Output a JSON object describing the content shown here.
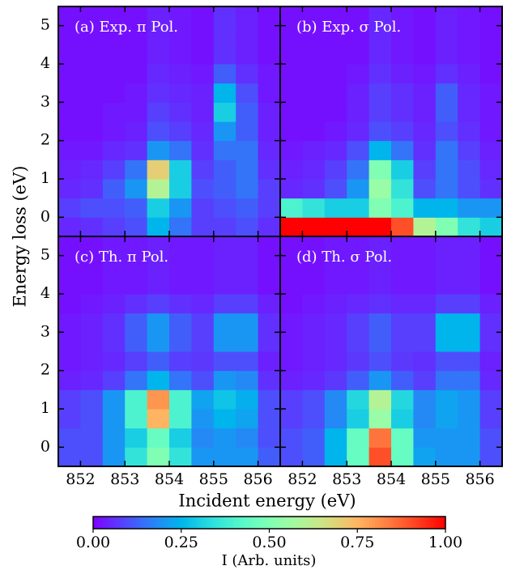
{
  "chart_data": [
    {
      "type": "heatmap",
      "title": "(a) Exp. π Pol.",
      "colormap": "rainbow",
      "xlim": [
        851.5,
        856.5
      ],
      "ylim": [
        -0.5,
        5.5
      ],
      "xticks": [
        852,
        853,
        854,
        855,
        856
      ],
      "yticks": [
        0,
        1,
        2,
        3,
        4,
        5
      ],
      "xbins": [
        851.5,
        852,
        852.5,
        853,
        853.5,
        854,
        854.5,
        855,
        855.5,
        856,
        856.5
      ],
      "ybins": [
        -0.5,
        0,
        0.5,
        1,
        1.5,
        2,
        2.5,
        3,
        3.5,
        4,
        4.5,
        5,
        5.5
      ],
      "values": [
        [
          0.05,
          0.06,
          0.08,
          0.1,
          0.25,
          0.15,
          0.08,
          0.08,
          0.1,
          0.06
        ],
        [
          0.08,
          0.1,
          0.1,
          0.12,
          0.3,
          0.2,
          0.08,
          0.1,
          0.12,
          0.08
        ],
        [
          0.05,
          0.06,
          0.12,
          0.2,
          0.6,
          0.3,
          0.1,
          0.12,
          0.15,
          0.08
        ],
        [
          0.04,
          0.05,
          0.08,
          0.15,
          0.7,
          0.3,
          0.08,
          0.12,
          0.15,
          0.06
        ],
        [
          0.03,
          0.03,
          0.05,
          0.06,
          0.2,
          0.15,
          0.06,
          0.15,
          0.15,
          0.05
        ],
        [
          0.02,
          0.02,
          0.03,
          0.04,
          0.1,
          0.08,
          0.05,
          0.2,
          0.12,
          0.04
        ],
        [
          0.02,
          0.02,
          0.03,
          0.03,
          0.08,
          0.06,
          0.04,
          0.3,
          0.12,
          0.04
        ],
        [
          0.02,
          0.02,
          0.02,
          0.03,
          0.06,
          0.05,
          0.04,
          0.25,
          0.1,
          0.03
        ],
        [
          0.02,
          0.02,
          0.02,
          0.02,
          0.05,
          0.04,
          0.03,
          0.12,
          0.06,
          0.03
        ],
        [
          0.02,
          0.02,
          0.02,
          0.02,
          0.04,
          0.03,
          0.02,
          0.06,
          0.04,
          0.02
        ],
        [
          0.02,
          0.02,
          0.02,
          0.02,
          0.04,
          0.03,
          0.02,
          0.06,
          0.04,
          0.02
        ],
        [
          0.02,
          0.02,
          0.02,
          0.02,
          0.04,
          0.03,
          0.02,
          0.06,
          0.04,
          0.02
        ]
      ]
    },
    {
      "type": "heatmap",
      "title": "(b) Exp. σ Pol.",
      "colormap": "rainbow",
      "xlim": [
        851.5,
        856.5
      ],
      "ylim": [
        -0.5,
        5.5
      ],
      "xticks": [
        852,
        853,
        854,
        855,
        856
      ],
      "yticks": [
        0,
        1,
        2,
        3,
        4,
        5
      ],
      "xbins": [
        851.5,
        852,
        852.5,
        853,
        853.5,
        854,
        854.5,
        855,
        855.5,
        856,
        856.5
      ],
      "ybins": [
        -0.5,
        0,
        0.5,
        1,
        1.5,
        2,
        2.5,
        3,
        3.5,
        4,
        4.5,
        5,
        5.5
      ],
      "values": [
        [
          1,
          1,
          1,
          1,
          1,
          0.9,
          0.6,
          0.5,
          0.35,
          0.3
        ],
        [
          0.4,
          0.35,
          0.3,
          0.3,
          0.5,
          0.4,
          0.25,
          0.25,
          0.2,
          0.2
        ],
        [
          0.05,
          0.06,
          0.1,
          0.2,
          0.55,
          0.35,
          0.1,
          0.15,
          0.1,
          0.06
        ],
        [
          0.04,
          0.05,
          0.08,
          0.15,
          0.5,
          0.3,
          0.08,
          0.15,
          0.1,
          0.05
        ],
        [
          0.03,
          0.04,
          0.05,
          0.1,
          0.25,
          0.15,
          0.06,
          0.15,
          0.08,
          0.04
        ],
        [
          0.02,
          0.02,
          0.03,
          0.05,
          0.1,
          0.08,
          0.05,
          0.1,
          0.06,
          0.03
        ],
        [
          0.02,
          0.02,
          0.02,
          0.04,
          0.08,
          0.06,
          0.04,
          0.12,
          0.05,
          0.03
        ],
        [
          0.02,
          0.02,
          0.02,
          0.04,
          0.08,
          0.06,
          0.04,
          0.12,
          0.05,
          0.03
        ],
        [
          0.02,
          0.02,
          0.02,
          0.03,
          0.06,
          0.04,
          0.03,
          0.06,
          0.04,
          0.02
        ],
        [
          0.02,
          0.02,
          0.02,
          0.02,
          0.05,
          0.03,
          0.02,
          0.04,
          0.03,
          0.02
        ],
        [
          0.02,
          0.02,
          0.02,
          0.02,
          0.05,
          0.03,
          0.02,
          0.04,
          0.03,
          0.02
        ],
        [
          0.02,
          0.02,
          0.02,
          0.02,
          0.05,
          0.03,
          0.02,
          0.04,
          0.03,
          0.02
        ]
      ]
    },
    {
      "type": "heatmap",
      "title": "(c) Th. π Pol.",
      "colormap": "rainbow",
      "xlim": [
        851.5,
        856.5
      ],
      "ylim": [
        -0.5,
        5.5
      ],
      "xticks": [
        852,
        853,
        854,
        855,
        856
      ],
      "yticks": [
        0,
        1,
        2,
        3,
        4,
        5
      ],
      "xbins": [
        851.5,
        852,
        852.5,
        853,
        853.5,
        854,
        854.5,
        855,
        855.5,
        856,
        856.5
      ],
      "ybins": [
        -0.5,
        0,
        0.5,
        1,
        1.5,
        2,
        2.5,
        3,
        3.5,
        4,
        4.5,
        5,
        5.5
      ],
      "values": [
        [
          0.1,
          0.1,
          0.2,
          0.35,
          0.5,
          0.35,
          0.2,
          0.2,
          0.2,
          0.12
        ],
        [
          0.1,
          0.1,
          0.2,
          0.3,
          0.45,
          0.3,
          0.18,
          0.2,
          0.18,
          0.1
        ],
        [
          0.08,
          0.1,
          0.2,
          0.4,
          0.75,
          0.4,
          0.2,
          0.25,
          0.22,
          0.1
        ],
        [
          0.08,
          0.1,
          0.2,
          0.4,
          0.8,
          0.4,
          0.22,
          0.28,
          0.24,
          0.1
        ],
        [
          0.04,
          0.05,
          0.08,
          0.15,
          0.25,
          0.15,
          0.1,
          0.2,
          0.18,
          0.06
        ],
        [
          0.03,
          0.04,
          0.05,
          0.08,
          0.12,
          0.08,
          0.07,
          0.1,
          0.1,
          0.04
        ],
        [
          0.03,
          0.04,
          0.06,
          0.12,
          0.2,
          0.12,
          0.08,
          0.2,
          0.2,
          0.06
        ],
        [
          0.03,
          0.04,
          0.06,
          0.12,
          0.2,
          0.12,
          0.08,
          0.2,
          0.2,
          0.06
        ],
        [
          0.02,
          0.03,
          0.04,
          0.06,
          0.08,
          0.06,
          0.05,
          0.08,
          0.08,
          0.04
        ],
        [
          0.02,
          0.02,
          0.03,
          0.03,
          0.04,
          0.03,
          0.03,
          0.04,
          0.04,
          0.02
        ],
        [
          0.02,
          0.02,
          0.03,
          0.03,
          0.04,
          0.03,
          0.03,
          0.04,
          0.04,
          0.02
        ],
        [
          0.02,
          0.02,
          0.03,
          0.03,
          0.04,
          0.03,
          0.03,
          0.04,
          0.04,
          0.02
        ]
      ]
    },
    {
      "type": "heatmap",
      "title": "(d) Th. σ Pol.",
      "colormap": "rainbow",
      "xlim": [
        851.5,
        856.5
      ],
      "ylim": [
        -0.5,
        5.5
      ],
      "xticks": [
        852,
        853,
        854,
        855,
        856
      ],
      "yticks": [
        0,
        1,
        2,
        3,
        4,
        5
      ],
      "xbins": [
        851.5,
        852,
        852.5,
        853,
        853.5,
        854,
        854.5,
        855,
        855.5,
        856,
        856.5
      ],
      "ybins": [
        -0.5,
        0,
        0.5,
        1,
        1.5,
        2,
        2.5,
        3,
        3.5,
        4,
        4.5,
        5,
        5.5
      ],
      "values": [
        [
          0.1,
          0.12,
          0.25,
          0.45,
          0.9,
          0.45,
          0.22,
          0.2,
          0.2,
          0.1
        ],
        [
          0.1,
          0.12,
          0.25,
          0.45,
          0.85,
          0.45,
          0.2,
          0.2,
          0.2,
          0.1
        ],
        [
          0.08,
          0.1,
          0.18,
          0.3,
          0.55,
          0.3,
          0.18,
          0.22,
          0.2,
          0.08
        ],
        [
          0.08,
          0.1,
          0.18,
          0.32,
          0.6,
          0.32,
          0.18,
          0.22,
          0.2,
          0.08
        ],
        [
          0.04,
          0.05,
          0.07,
          0.12,
          0.2,
          0.12,
          0.08,
          0.15,
          0.15,
          0.05
        ],
        [
          0.03,
          0.04,
          0.05,
          0.07,
          0.1,
          0.07,
          0.06,
          0.1,
          0.1,
          0.04
        ],
        [
          0.03,
          0.04,
          0.05,
          0.08,
          0.12,
          0.08,
          0.08,
          0.25,
          0.25,
          0.06
        ],
        [
          0.03,
          0.04,
          0.05,
          0.08,
          0.12,
          0.08,
          0.08,
          0.25,
          0.25,
          0.06
        ],
        [
          0.02,
          0.03,
          0.04,
          0.05,
          0.06,
          0.05,
          0.05,
          0.08,
          0.08,
          0.04
        ],
        [
          0.02,
          0.02,
          0.03,
          0.03,
          0.04,
          0.03,
          0.03,
          0.04,
          0.04,
          0.02
        ],
        [
          0.02,
          0.02,
          0.03,
          0.03,
          0.04,
          0.03,
          0.03,
          0.04,
          0.04,
          0.02
        ],
        [
          0.02,
          0.02,
          0.03,
          0.03,
          0.04,
          0.03,
          0.03,
          0.04,
          0.04,
          0.02
        ]
      ]
    }
  ],
  "xlabel": "Incident energy (eV)",
  "ylabel": "Energy loss (eV)",
  "colorbar": {
    "label": "I (Arb. units)",
    "colormap": "rainbow",
    "lim": [
      0,
      1
    ],
    "ticks": [
      {
        "value": 0,
        "label": "0.00"
      },
      {
        "value": 0.25,
        "label": "0.25"
      },
      {
        "value": 0.5,
        "label": "0.50"
      },
      {
        "value": 0.75,
        "label": "0.75"
      },
      {
        "value": 1,
        "label": "1.00"
      }
    ]
  }
}
